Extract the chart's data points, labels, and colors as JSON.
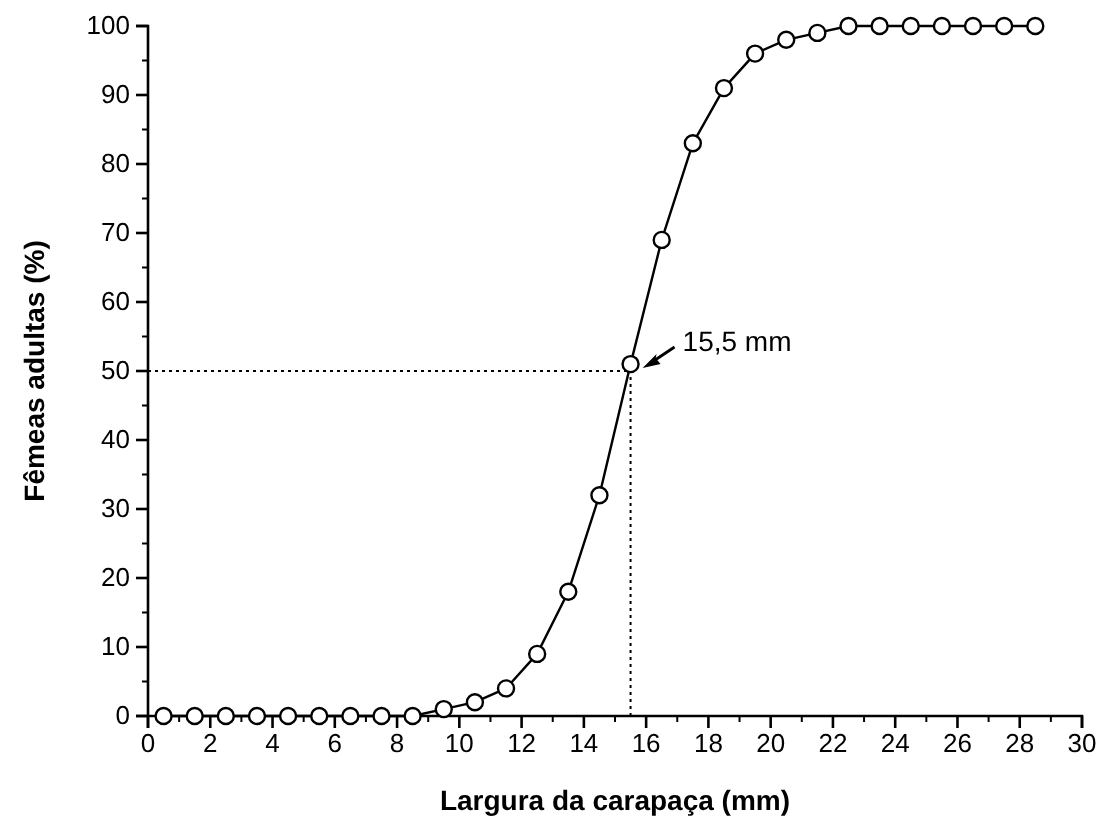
{
  "chart_data": {
    "type": "line",
    "xlabel": "Largura da carapaça (mm)",
    "ylabel": "Fêmeas adultas (%)",
    "x": [
      0.5,
      1.5,
      2.5,
      3.5,
      4.5,
      5.5,
      6.5,
      7.5,
      8.5,
      9.5,
      10.5,
      11.5,
      12.5,
      13.5,
      14.5,
      15.5,
      16.5,
      17.5,
      18.5,
      19.5,
      20.5,
      21.5,
      22.5,
      23.5,
      24.5,
      25.5,
      26.5,
      27.5,
      28.5
    ],
    "series": [
      {
        "color": "#000000",
        "values": [
          0,
          0,
          0,
          0,
          0,
          0,
          0,
          0,
          0,
          1,
          2,
          4,
          9,
          18,
          32,
          51,
          69,
          83,
          91,
          96,
          98,
          99,
          100,
          100,
          100,
          100,
          100,
          100,
          100
        ]
      }
    ],
    "xlim": [
      0,
      30
    ],
    "xticks": [
      0,
      2,
      4,
      6,
      8,
      10,
      12,
      14,
      16,
      18,
      20,
      22,
      24,
      26,
      28,
      30
    ],
    "ylim": [
      0,
      100
    ],
    "yticks": [
      0,
      10,
      20,
      30,
      40,
      50,
      60,
      70,
      80,
      90,
      100
    ],
    "marker": "circle",
    "line_style": "solid",
    "grid": false,
    "ref_lines": [
      {
        "axis": "y",
        "value": 50,
        "line_style": "dotted"
      },
      {
        "axis": "x",
        "value": 15.5,
        "line_style": "dotted"
      }
    ],
    "annotations": [
      {
        "text": "15,5 mm",
        "x": 15.5,
        "y": 50
      }
    ]
  }
}
